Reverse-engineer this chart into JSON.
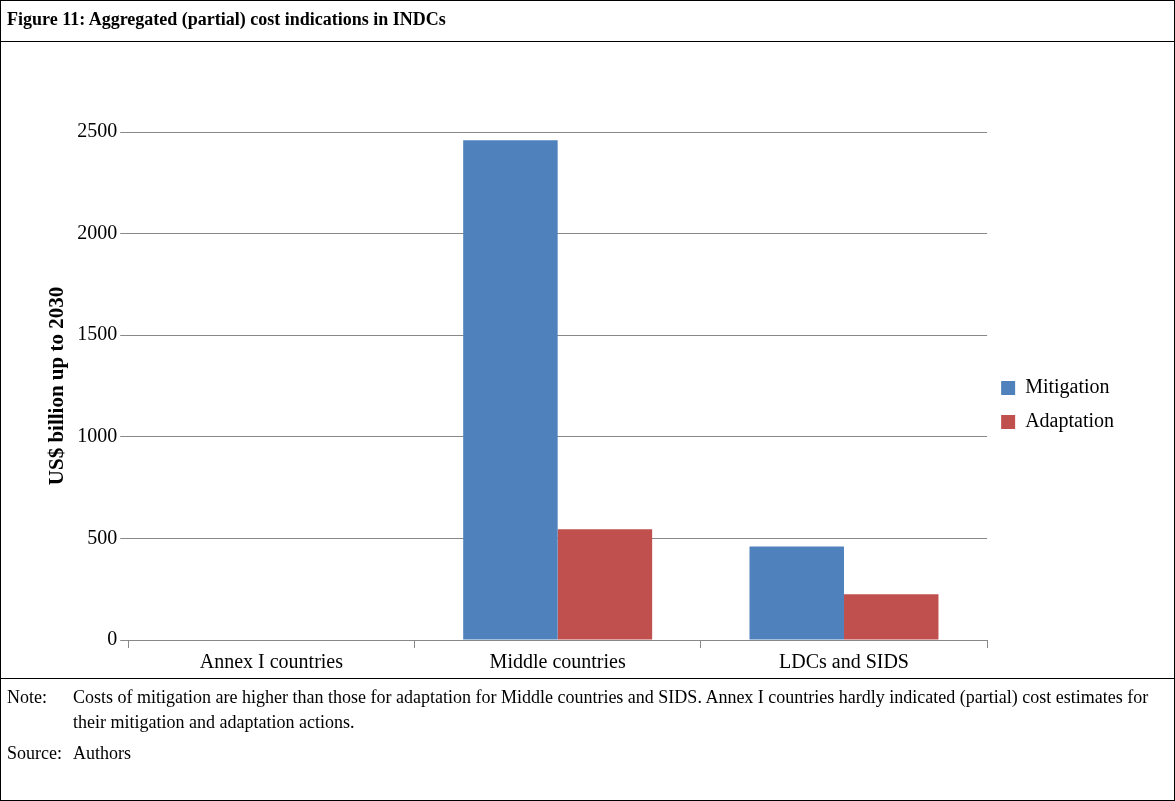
{
  "chart_data": {
    "type": "bar",
    "title": "Figure 11:  Aggregated (partial) cost indications in INDCs",
    "ylabel": "US$ billion up to 2030",
    "categories": [
      "Annex I countries",
      "Middle countries",
      "LDCs and SIDS"
    ],
    "series": [
      {
        "name": "Mitigation",
        "color": "#4f81bd",
        "values": [
          0,
          2460,
          460
        ]
      },
      {
        "name": "Adaptation",
        "color": "#c0504d",
        "values": [
          0,
          545,
          225
        ]
      }
    ],
    "ylim": [
      0,
      2500
    ],
    "yticks": [
      0,
      500,
      1000,
      1500,
      2000,
      2500
    ],
    "grid": "y",
    "legend": "right",
    "annotations": [
      "Note:\tCosts of mitigation are higher than those for adaptation for Middle countries and SIDS. Annex I countries hardly indicated (partial) cost estimates for their mitigation and adaptation actions.",
      "Source:\tAuthors"
    ]
  }
}
